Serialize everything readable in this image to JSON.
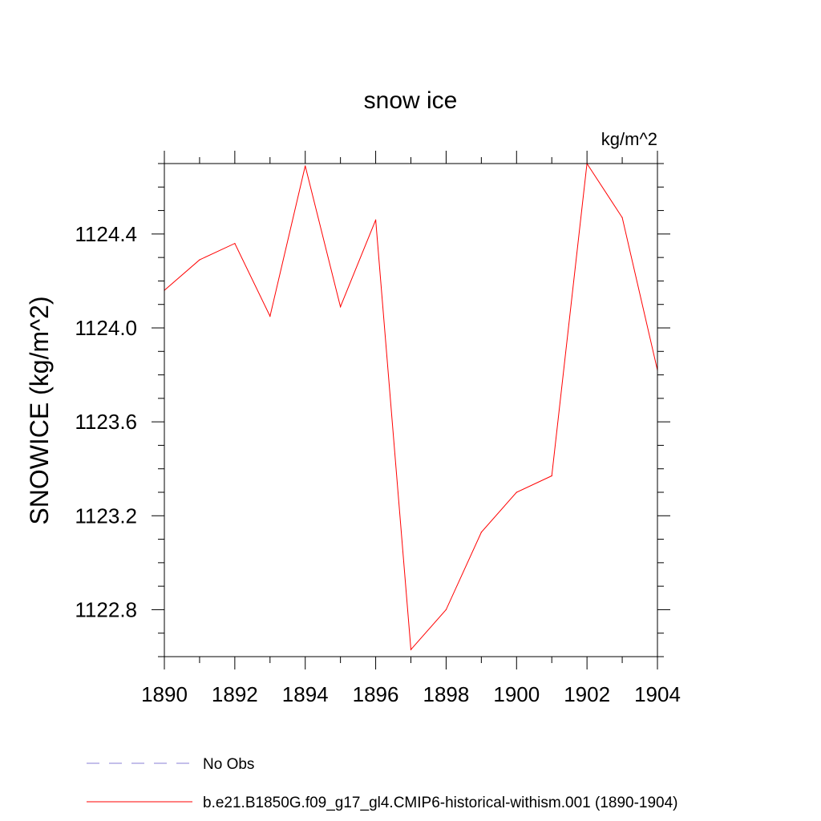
{
  "chart_data": {
    "type": "line",
    "title": "snow ice",
    "units_label": "kg/m^2",
    "ylabel": "SNOWICE  (kg/m^2)",
    "xlabel": "",
    "xlim": [
      1890,
      1904
    ],
    "ylim": [
      1122.6,
      1124.7
    ],
    "x_ticks": [
      "1890",
      "1892",
      "1894",
      "1896",
      "1898",
      "1900",
      "1902",
      "1904"
    ],
    "y_ticks": [
      "1122.8",
      "1123.2",
      "1123.6",
      "1124.0",
      "1124.4"
    ],
    "grid": false,
    "legend_placement": "bottom",
    "series": [
      {
        "name": "No Obs",
        "color": "#8a7fd6",
        "dash": "dashed",
        "x": [],
        "y": []
      },
      {
        "name": "b.e21.B1850G.f09_g17_gl4.CMIP6-historical-withism.001 (1890-1904)",
        "color": "#ff0000",
        "dash": "solid",
        "x": [
          1890,
          1891,
          1892,
          1893,
          1894,
          1895,
          1896,
          1897,
          1898,
          1899,
          1900,
          1901,
          1902,
          1903,
          1904
        ],
        "y": [
          1124.16,
          1124.29,
          1124.36,
          1124.05,
          1124.69,
          1124.09,
          1124.46,
          1122.63,
          1122.8,
          1123.13,
          1123.3,
          1123.37,
          1124.7,
          1124.47,
          1123.82
        ]
      }
    ]
  }
}
